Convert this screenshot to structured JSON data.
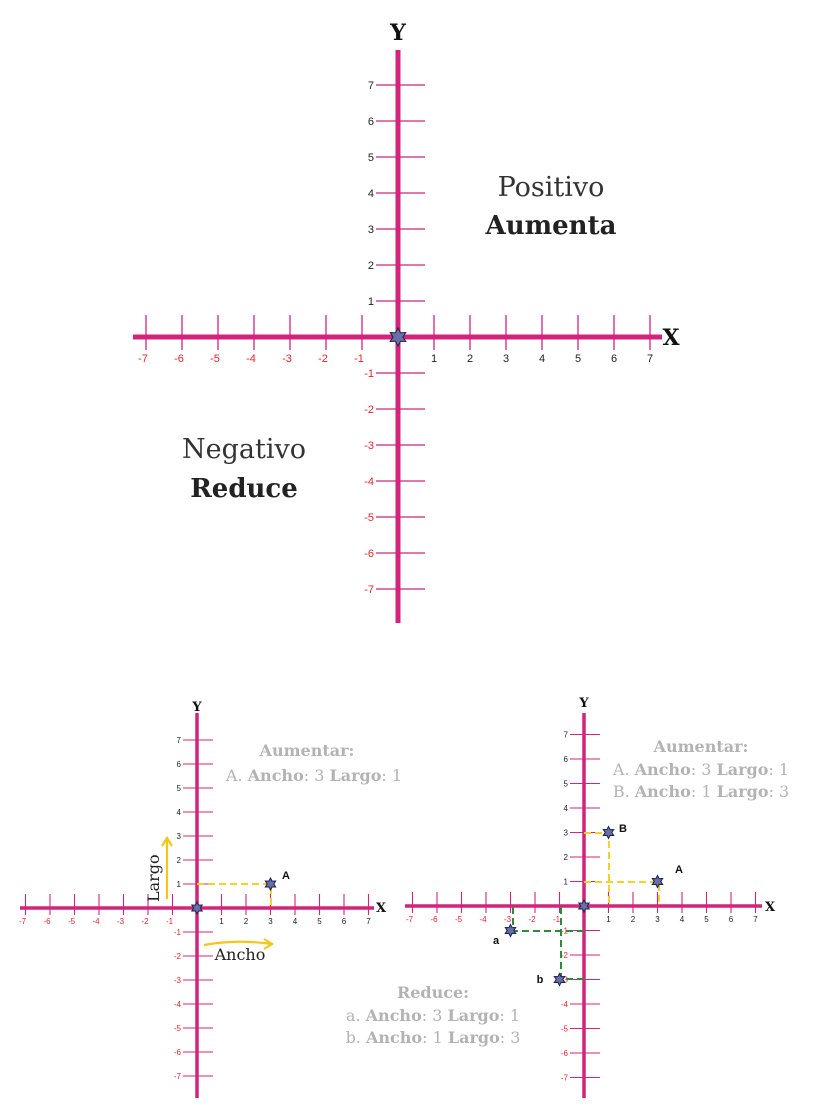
{
  "main_plane": {
    "y_axis_label": "Y",
    "x_axis_label": "X",
    "positive_title": "Positivo",
    "positive_subtitle": "Aumenta",
    "negative_title": "Negativo",
    "negative_subtitle": "Reduce",
    "y_pos_ticks": [
      "1",
      "2",
      "3",
      "4",
      "5",
      "6",
      "7"
    ],
    "y_neg_ticks": [
      "-1",
      "-2",
      "-3",
      "-4",
      "-5",
      "-6",
      "-7"
    ],
    "x_pos_ticks": [
      "1",
      "2",
      "3",
      "4",
      "5",
      "6",
      "7"
    ],
    "x_neg_ticks": [
      "-1",
      "-2",
      "-3",
      "-4",
      "-5",
      "-6",
      "-7"
    ]
  },
  "left_plane": {
    "y_axis_label": "Y",
    "x_axis_label": "X",
    "title": "Aumentar:",
    "line1": {
      "prefix": "A.",
      "ancho_label": "Ancho",
      "ancho_value": "3",
      "largo_label": "Largo",
      "largo_value": "1"
    },
    "point_label": "A",
    "largo_arrow_label": "Largo",
    "ancho_arrow_label": "Ancho"
  },
  "right_plane": {
    "y_axis_label": "Y",
    "x_axis_label": "X",
    "title": "Aumentar:",
    "line1": {
      "prefix": "A.",
      "ancho_label": "Ancho",
      "ancho_value": "3",
      "largo_label": "Largo",
      "largo_value": "1"
    },
    "line2": {
      "prefix": "B.",
      "ancho_label": "Ancho",
      "ancho_value": "1",
      "largo_label": "Largo",
      "largo_value": "3"
    },
    "point_A": "A",
    "point_B": "B",
    "point_a": "a",
    "point_b": "b"
  },
  "reduce_block": {
    "title": "Reduce:",
    "line1": {
      "prefix": "a.",
      "ancho_label": "Ancho",
      "ancho_value": "3",
      "largo_label": "Largo",
      "largo_value": "1"
    },
    "line2": {
      "prefix": "b.",
      "ancho_label": "Ancho",
      "ancho_value": "1",
      "largo_label": "Largo",
      "largo_value": "3"
    }
  },
  "points": {
    "left": [
      {
        "x": 3,
        "y": 1,
        "label": "A"
      }
    ],
    "right": [
      {
        "x": 3,
        "y": 1,
        "label": "A"
      },
      {
        "x": 1,
        "y": 3,
        "label": "B"
      },
      {
        "x": -3,
        "y": -1,
        "label": "a"
      },
      {
        "x": -1,
        "y": -3,
        "label": "b"
      }
    ]
  },
  "colors": {
    "axis": "#d4237a",
    "negative_numbers": "#e8232a",
    "dash_positive": "#f2d32a",
    "dash_negative": "#2e8b3a",
    "arrow": "#f5c518",
    "faded_text": "#b3b3b3",
    "star_fill": "#6b6fa8"
  },
  "icons": [
    "star-marker-icon",
    "arrow-up-icon",
    "arrow-right-icon"
  ]
}
